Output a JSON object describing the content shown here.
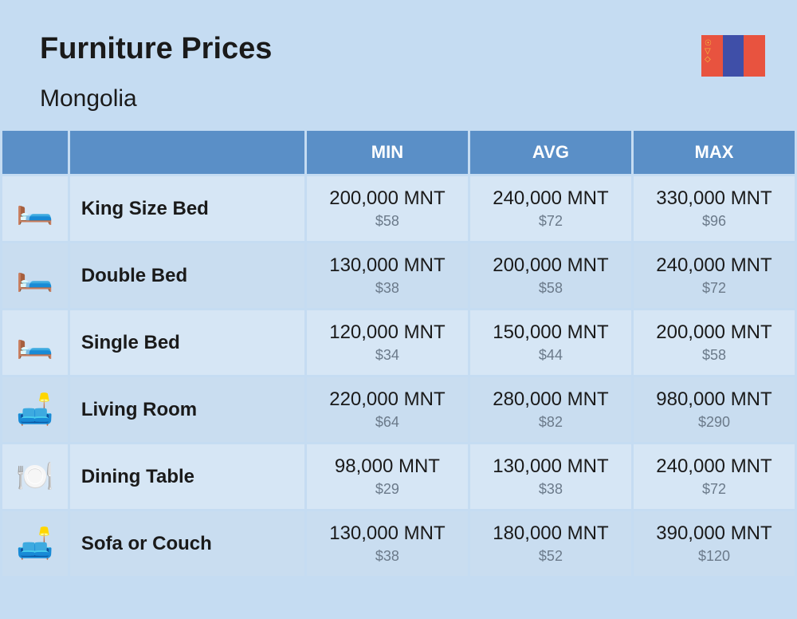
{
  "header": {
    "title": "Furniture Prices",
    "subtitle": "Mongolia"
  },
  "flag": {
    "left_color": "#e8533f",
    "middle_color": "#3f4fa8",
    "right_color": "#e8533f",
    "symbol_color": "#f5c842"
  },
  "columns": {
    "min": "MIN",
    "avg": "AVG",
    "max": "MAX"
  },
  "rows": [
    {
      "icon": "🛏️",
      "name": "King Size Bed",
      "min_mnt": "200,000 MNT",
      "min_usd": "$58",
      "avg_mnt": "240,000 MNT",
      "avg_usd": "$72",
      "max_mnt": "330,000 MNT",
      "max_usd": "$96"
    },
    {
      "icon": "🛏️",
      "name": "Double Bed",
      "min_mnt": "130,000 MNT",
      "min_usd": "$38",
      "avg_mnt": "200,000 MNT",
      "avg_usd": "$58",
      "max_mnt": "240,000 MNT",
      "max_usd": "$72"
    },
    {
      "icon": "🛏️",
      "name": "Single Bed",
      "min_mnt": "120,000 MNT",
      "min_usd": "$34",
      "avg_mnt": "150,000 MNT",
      "avg_usd": "$44",
      "max_mnt": "200,000 MNT",
      "max_usd": "$58"
    },
    {
      "icon": "🛋️",
      "name": "Living Room",
      "min_mnt": "220,000 MNT",
      "min_usd": "$64",
      "avg_mnt": "280,000 MNT",
      "avg_usd": "$82",
      "max_mnt": "980,000 MNT",
      "max_usd": "$290"
    },
    {
      "icon": "🍽️",
      "name": "Dining Table",
      "min_mnt": "98,000 MNT",
      "min_usd": "$29",
      "avg_mnt": "130,000 MNT",
      "avg_usd": "$38",
      "max_mnt": "240,000 MNT",
      "max_usd": "$72"
    },
    {
      "icon": "🛋️",
      "name": "Sofa or Couch",
      "min_mnt": "130,000 MNT",
      "min_usd": "$38",
      "avg_mnt": "180,000 MNT",
      "avg_usd": "$52",
      "max_mnt": "390,000 MNT",
      "max_usd": "$120"
    }
  ],
  "styling": {
    "page_bg": "#c5dcf2",
    "header_bg": "#5a8fc7",
    "header_text": "#ffffff",
    "row_alt_a": "#d6e6f5",
    "row_alt_b": "#c9ddf0",
    "text_primary": "#1a1a1a",
    "text_secondary": "#6b7a8a",
    "title_fontsize": 38,
    "subtitle_fontsize": 30,
    "col_header_fontsize": 22,
    "name_fontsize": 24,
    "mnt_fontsize": 24,
    "usd_fontsize": 18
  }
}
